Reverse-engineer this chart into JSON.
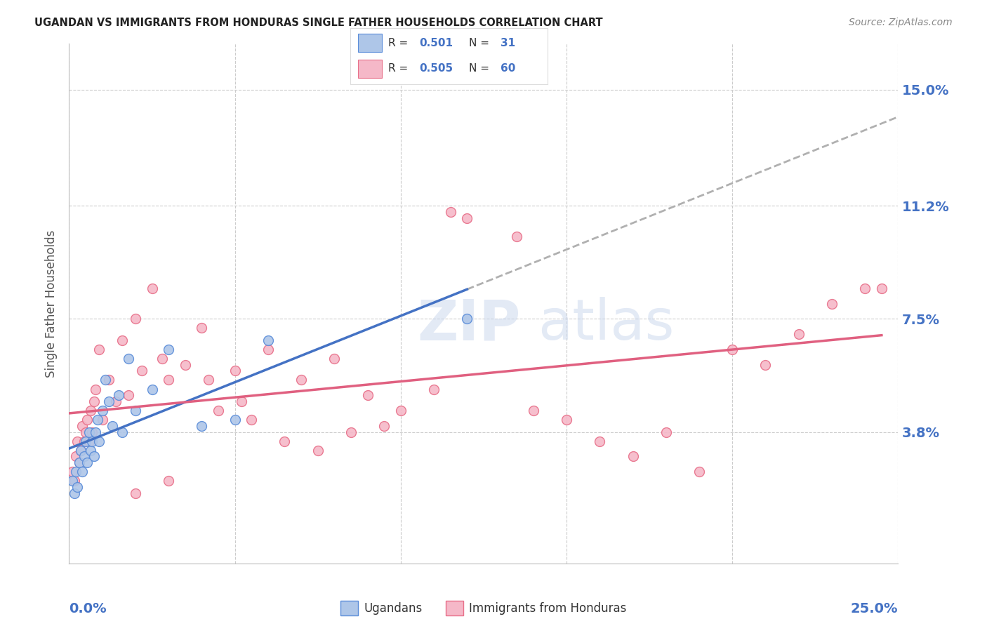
{
  "title": "UGANDAN VS IMMIGRANTS FROM HONDURAS SINGLE FATHER HOUSEHOLDS CORRELATION CHART",
  "source": "Source: ZipAtlas.com",
  "ylabel": "Single Father Households",
  "ytick_values": [
    3.8,
    7.5,
    11.2,
    15.0
  ],
  "xlim": [
    0.0,
    25.0
  ],
  "ylim": [
    -0.5,
    16.5
  ],
  "ugandan_color": "#aec6e8",
  "honduras_color": "#f5b8c8",
  "ugandan_edge_color": "#5b8dd9",
  "honduras_edge_color": "#e8708a",
  "ugandan_line_color": "#4472c4",
  "honduras_line_color": "#e06080",
  "dashed_line_color": "#b0b0b0",
  "background_color": "#ffffff",
  "grid_color": "#cccccc",
  "title_color": "#222222",
  "source_color": "#888888",
  "axis_label_color": "#4472c4",
  "ugandan_x": [
    0.1,
    0.15,
    0.2,
    0.25,
    0.3,
    0.35,
    0.4,
    0.45,
    0.5,
    0.55,
    0.6,
    0.65,
    0.7,
    0.75,
    0.8,
    0.85,
    0.9,
    1.0,
    1.1,
    1.2,
    1.3,
    1.5,
    1.6,
    1.8,
    2.0,
    2.5,
    3.0,
    4.0,
    5.0,
    6.0,
    12.0
  ],
  "ugandan_y": [
    2.2,
    1.8,
    2.5,
    2.0,
    2.8,
    3.2,
    2.5,
    3.0,
    3.5,
    2.8,
    3.8,
    3.2,
    3.5,
    3.0,
    3.8,
    4.2,
    3.5,
    4.5,
    5.5,
    4.8,
    4.0,
    5.0,
    3.8,
    6.2,
    4.5,
    5.2,
    6.5,
    4.0,
    4.2,
    6.8,
    7.5
  ],
  "honduras_x": [
    0.1,
    0.15,
    0.2,
    0.25,
    0.3,
    0.35,
    0.4,
    0.45,
    0.5,
    0.55,
    0.6,
    0.65,
    0.7,
    0.75,
    0.8,
    0.9,
    1.0,
    1.2,
    1.4,
    1.6,
    1.8,
    2.0,
    2.2,
    2.5,
    2.8,
    3.0,
    3.5,
    4.0,
    4.5,
    5.0,
    5.5,
    6.0,
    7.0,
    8.0,
    9.0,
    10.0,
    11.0,
    12.0,
    13.5,
    15.0,
    16.0,
    17.0,
    18.0,
    19.0,
    20.0,
    21.0,
    22.0,
    23.0,
    24.0,
    2.0,
    3.0,
    6.5,
    7.5,
    8.5,
    4.2,
    5.2,
    9.5,
    11.5,
    14.0,
    24.5
  ],
  "honduras_y": [
    2.5,
    2.2,
    3.0,
    3.5,
    2.8,
    3.2,
    4.0,
    3.5,
    3.8,
    4.2,
    3.5,
    4.5,
    3.8,
    4.8,
    5.2,
    6.5,
    4.2,
    5.5,
    4.8,
    6.8,
    5.0,
    7.5,
    5.8,
    8.5,
    6.2,
    5.5,
    6.0,
    7.2,
    4.5,
    5.8,
    4.2,
    6.5,
    5.5,
    6.2,
    5.0,
    4.5,
    5.2,
    10.8,
    10.2,
    4.2,
    3.5,
    3.0,
    3.8,
    2.5,
    6.5,
    6.0,
    7.0,
    8.0,
    8.5,
    1.8,
    2.2,
    3.5,
    3.2,
    3.8,
    5.5,
    4.8,
    4.0,
    11.0,
    4.5,
    8.5
  ]
}
